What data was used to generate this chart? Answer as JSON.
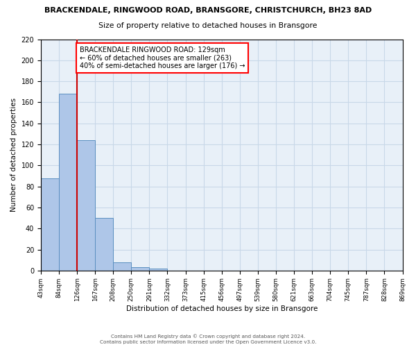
{
  "title1": "BRACKENDALE, RINGWOOD ROAD, BRANSGORE, CHRISTCHURCH, BH23 8AD",
  "title2": "Size of property relative to detached houses in Bransgore",
  "xlabel": "Distribution of detached houses by size in Bransgore",
  "ylabel": "Number of detached properties",
  "bar_heights": [
    88,
    168,
    124,
    50,
    8,
    3,
    2,
    0,
    0,
    0,
    0,
    0,
    0,
    0,
    0,
    0,
    0,
    0,
    0,
    0
  ],
  "bin_labels": [
    "43sqm",
    "84sqm",
    "126sqm",
    "167sqm",
    "208sqm",
    "250sqm",
    "291sqm",
    "332sqm",
    "373sqm",
    "415sqm",
    "456sqm",
    "497sqm",
    "539sqm",
    "580sqm",
    "621sqm",
    "663sqm",
    "704sqm",
    "745sqm",
    "787sqm",
    "828sqm",
    "869sqm"
  ],
  "bar_color": "#aec6e8",
  "bar_edge_color": "#5a8fc0",
  "vline_x": 2,
  "vline_color": "#cc0000",
  "ylim": [
    0,
    220
  ],
  "yticks": [
    0,
    20,
    40,
    60,
    80,
    100,
    120,
    140,
    160,
    180,
    200,
    220
  ],
  "grid_color": "#c8d8e8",
  "bg_color": "#e8f0f8",
  "annotation_line1": "BRACKENDALE RINGWOOD ROAD: 129sqm",
  "annotation_line2": "← 60% of detached houses are smaller (263)",
  "annotation_line3": "40% of semi-detached houses are larger (176) →",
  "footer1": "Contains HM Land Registry data © Crown copyright and database right 2024.",
  "footer2": "Contains public sector information licensed under the Open Government Licence v3.0.",
  "n_bins": 20
}
